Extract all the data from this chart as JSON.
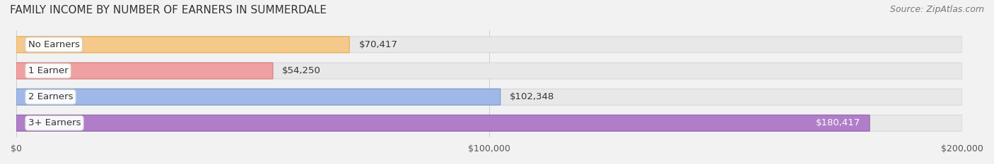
{
  "title": "FAMILY INCOME BY NUMBER OF EARNERS IN SUMMERDALE",
  "source": "Source: ZipAtlas.com",
  "categories": [
    "No Earners",
    "1 Earner",
    "2 Earners",
    "3+ Earners"
  ],
  "values": [
    70417,
    54250,
    102348,
    180417
  ],
  "bar_colors": [
    "#f5c98a",
    "#f0a0a0",
    "#a0b8e8",
    "#b07ec8"
  ],
  "bar_edge_colors": [
    "#e8a84a",
    "#d87878",
    "#7898d0",
    "#9060b0"
  ],
  "label_colors": [
    "#555555",
    "#555555",
    "#555555",
    "#ffffff"
  ],
  "xlim": [
    0,
    200000
  ],
  "tick_values": [
    0,
    100000,
    200000
  ],
  "tick_labels": [
    "$0",
    "$100,000",
    "$200,000"
  ],
  "background_color": "#f2f2f2",
  "bar_bg_color": "#e8e8e8",
  "title_fontsize": 11,
  "source_fontsize": 9,
  "label_fontsize": 9.5,
  "value_fontsize": 9.5,
  "tick_fontsize": 9
}
